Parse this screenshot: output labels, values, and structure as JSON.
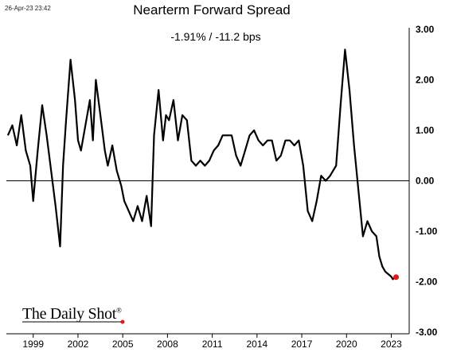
{
  "timestamp": "26-Apr-23 23:42",
  "brand": {
    "name": "The Daily Shot",
    "mark": "®"
  },
  "chart_data": {
    "type": "line",
    "title": "Nearterm Forward Spread",
    "subtitle": "-1.91%  /  -11.2 bps",
    "xlabel": "",
    "ylabel": "",
    "xlim": [
      1997.2,
      2024.2
    ],
    "ylim": [
      -3.0,
      3.0
    ],
    "x_ticks": [
      "1999",
      "2002",
      "2005",
      "2008",
      "2011",
      "2014",
      "2017",
      "2020",
      "2023"
    ],
    "y_ticks": [
      "3.00",
      "2.00",
      "1.00",
      "0.00",
      "-1.00",
      "-2.00",
      "-3.00"
    ],
    "y_axis_side": "right",
    "zero_line": true,
    "grid": false,
    "line_color": "#000000",
    "marker_color": "#e8141b",
    "last_point": {
      "x": 2023.32,
      "y": -1.91
    },
    "series": [
      {
        "x": [
          1997.3,
          1997.6,
          1997.9,
          1998.2,
          1998.5,
          1998.8,
          1999.0,
          1999.3,
          1999.6,
          1999.9,
          2000.2,
          2000.5,
          2000.8,
          2001.0,
          2001.2,
          2001.5,
          2001.8,
          2002.0,
          2002.2,
          2002.5,
          2002.8,
          2003.0,
          2003.2,
          2003.5,
          2003.8,
          2004.0,
          2004.3,
          2004.6,
          2004.9,
          2005.1,
          2005.4,
          2005.7,
          2006.0,
          2006.3,
          2006.6,
          2006.9,
          2007.1,
          2007.4,
          2007.7,
          2007.9,
          2008.1,
          2008.4,
          2008.7,
          2009.0,
          2009.3,
          2009.6,
          2009.9,
          2010.2,
          2010.5,
          2010.8,
          2011.1,
          2011.4,
          2011.7,
          2012.0,
          2012.3,
          2012.6,
          2012.9,
          2013.2,
          2013.5,
          2013.8,
          2014.1,
          2014.4,
          2014.7,
          2015.0,
          2015.3,
          2015.6,
          2015.9,
          2016.2,
          2016.5,
          2016.8,
          2017.1,
          2017.4,
          2017.7,
          2018.0,
          2018.3,
          2018.6,
          2018.9,
          2019.1,
          2019.3,
          2019.6,
          2019.9,
          2020.2,
          2020.5,
          2020.8,
          2021.1,
          2021.4,
          2021.7,
          2022.0,
          2022.2,
          2022.4,
          2022.6,
          2022.8,
          2023.0,
          2023.1,
          2023.2,
          2023.32
        ],
        "y": [
          0.9,
          1.1,
          0.7,
          1.3,
          0.6,
          0.3,
          -0.4,
          0.6,
          1.5,
          0.9,
          0.2,
          -0.5,
          -1.3,
          0.3,
          1.2,
          2.4,
          1.6,
          0.8,
          0.6,
          1.1,
          1.6,
          0.8,
          2.0,
          1.3,
          0.6,
          0.3,
          0.7,
          0.2,
          -0.1,
          -0.4,
          -0.6,
          -0.8,
          -0.5,
          -0.8,
          -0.3,
          -0.9,
          0.9,
          1.8,
          0.8,
          1.3,
          1.2,
          1.6,
          0.8,
          1.3,
          1.2,
          0.4,
          0.3,
          0.4,
          0.3,
          0.4,
          0.6,
          0.7,
          0.9,
          0.9,
          0.9,
          0.5,
          0.3,
          0.6,
          0.9,
          1.0,
          0.8,
          0.7,
          0.8,
          0.8,
          0.4,
          0.5,
          0.8,
          0.8,
          0.7,
          0.8,
          0.3,
          -0.6,
          -0.8,
          -0.4,
          0.1,
          0.0,
          0.1,
          0.2,
          0.3,
          1.5,
          2.6,
          1.8,
          0.7,
          -0.2,
          -1.1,
          -0.8,
          -1.0,
          -1.1,
          -1.5,
          -1.7,
          -1.8,
          -1.85,
          -1.9,
          -1.95,
          -1.92,
          -1.91
        ]
      }
    ]
  }
}
